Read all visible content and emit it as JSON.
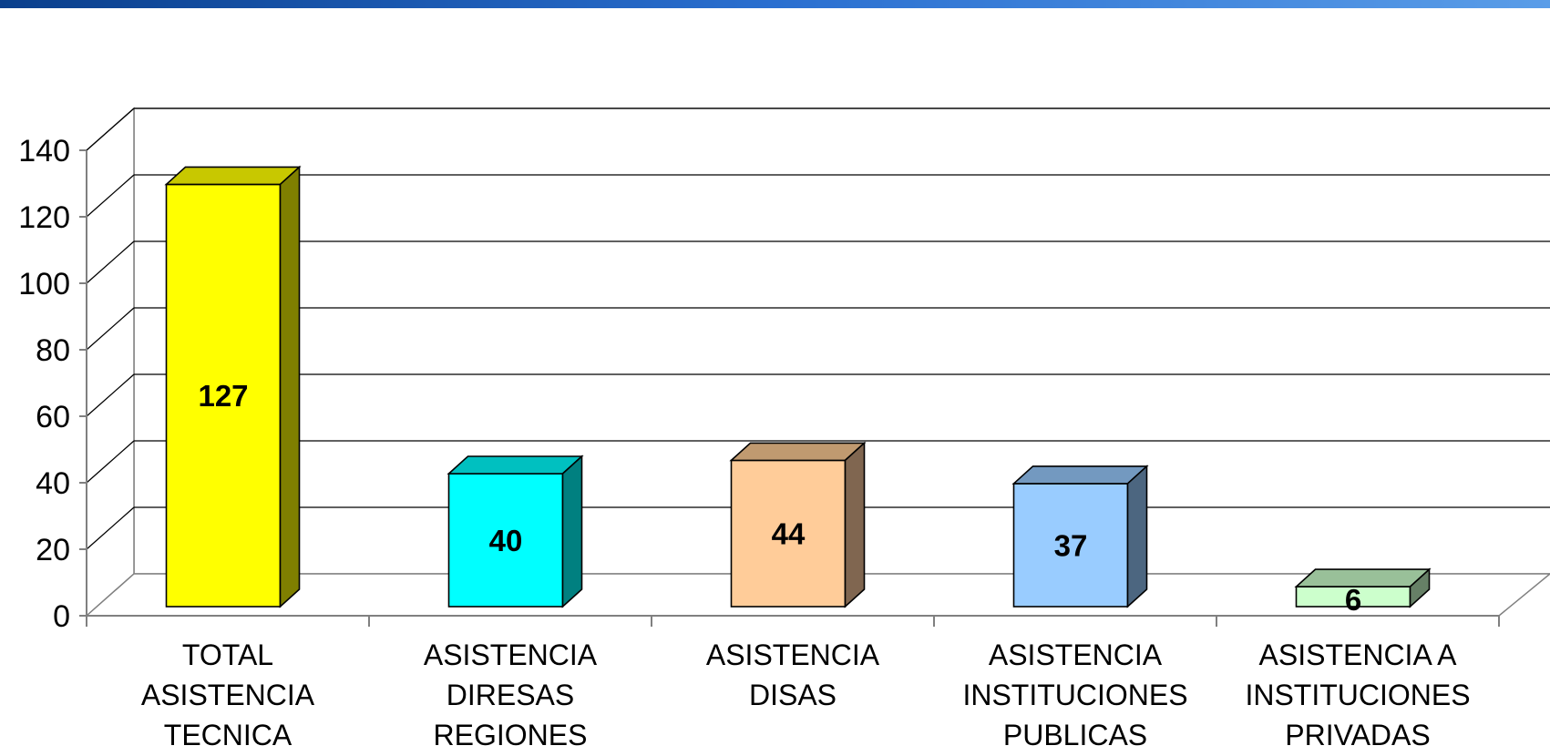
{
  "chart_data": {
    "type": "bar",
    "title": "",
    "xlabel": "",
    "ylabel": "",
    "ylim": [
      0,
      140
    ],
    "yticks": [
      0,
      20,
      40,
      60,
      80,
      100,
      120,
      140
    ],
    "grid": true,
    "legend": "none",
    "categories": [
      [
        "TOTAL",
        "ASISTENCIA",
        "TECNICA"
      ],
      [
        "ASISTENCIA",
        "DIRESAS",
        "REGIONES"
      ],
      [
        "ASISTENCIA",
        "DISAS"
      ],
      [
        "ASISTENCIA",
        "INSTITUCIONES",
        "PUBLICAS"
      ],
      [
        "ASISTENCIA A",
        "INSTITUCIONES",
        "PRIVADAS"
      ]
    ],
    "values": [
      127,
      40,
      44,
      37,
      6
    ],
    "data_labels": [
      "127",
      "40",
      "44",
      "37",
      "6"
    ],
    "colors": [
      {
        "front": "#FFFF00",
        "top": "#C8C800",
        "side": "#7F7F00"
      },
      {
        "front": "#00FFFF",
        "top": "#00C0C0",
        "side": "#008080"
      },
      {
        "front": "#FFCC99",
        "top": "#C09A70",
        "side": "#806650"
      },
      {
        "front": "#99CCFF",
        "top": "#7399C0",
        "side": "#4C6680"
      },
      {
        "front": "#CCFFCC",
        "top": "#99C099",
        "side": "#668066"
      }
    ]
  }
}
